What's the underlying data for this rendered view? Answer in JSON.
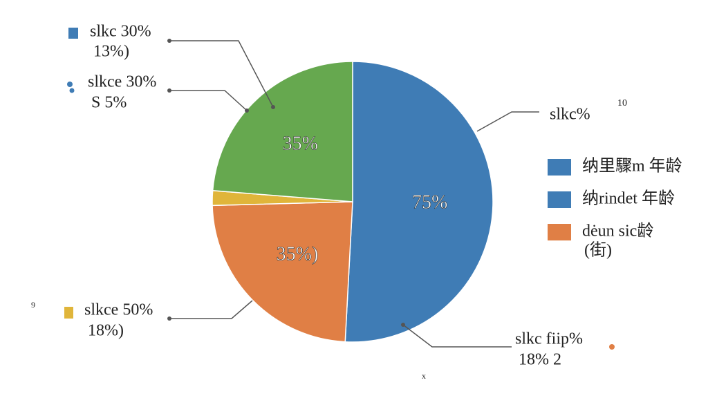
{
  "chart_data": {
    "type": "pie",
    "values": [
      75,
      35,
      2.5,
      35
    ],
    "value_labels": [
      "75%",
      "35%)",
      null,
      "35%"
    ],
    "colors": [
      "#3f7cb5",
      "#e07f45",
      "#e0b53a",
      "#66a84f"
    ],
    "legend": [
      {
        "label": "纳里驟m 年龄",
        "color": "#3f7cb5"
      },
      {
        "label": "纳rindet 年龄",
        "color": "#3f7cb5"
      },
      {
        "label": "dėun sic龄",
        "sublabel": "(街)",
        "color": "#e07f45"
      }
    ],
    "annotations": [
      [
        "slkc 30%",
        "13%)"
      ],
      [
        "slkce 30%",
        "S 5%"
      ],
      [
        "slkc%"
      ],
      [
        "slkce 50%",
        "18%)"
      ],
      [
        "slkc fiip%",
        "18% 2"
      ]
    ],
    "stray_texts": [
      "10",
      "9",
      "x"
    ]
  }
}
